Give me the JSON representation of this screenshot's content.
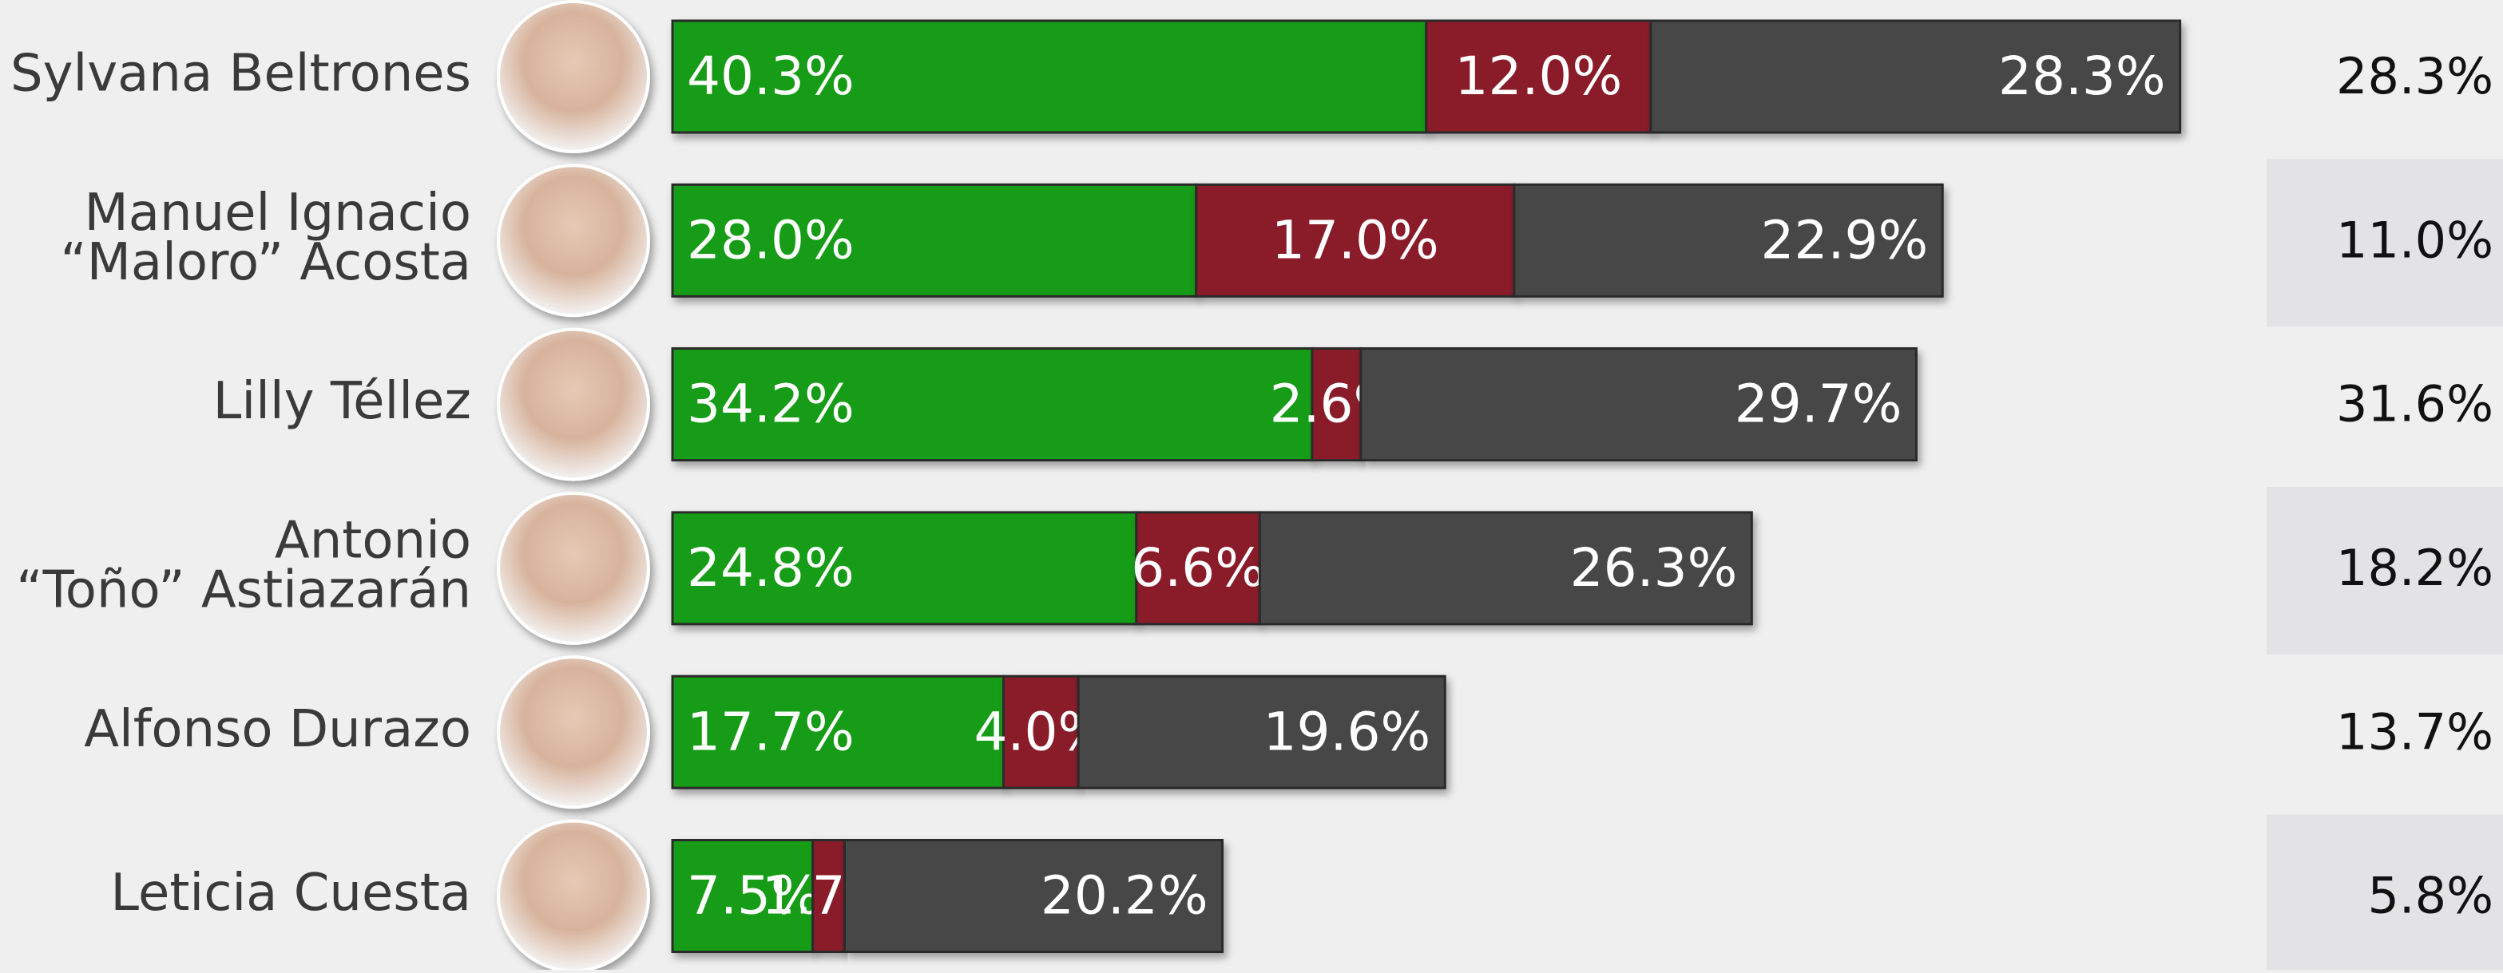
{
  "chart_data": {
    "type": "bar",
    "orientation": "horizontal",
    "stacked": true,
    "categories": [
      [
        "Sylvana Beltrones"
      ],
      [
        "Manuel Ignacio",
        "“Maloro” Acosta"
      ],
      [
        "Lilly Téllez"
      ],
      [
        "Antonio",
        "“Toño” Astiazarán"
      ],
      [
        "Alfonso Durazo"
      ],
      [
        "Leticia Cuesta"
      ]
    ],
    "series": [
      {
        "color": "#149c14",
        "values": [
          40.3,
          28.0,
          34.2,
          24.8,
          17.7,
          7.5
        ],
        "value_labels": [
          "40.3%",
          "28.0%",
          "34.2%",
          "24.8%",
          "17.7%",
          "7.5%"
        ]
      },
      {
        "color": "#8a1b2b",
        "values": [
          12.0,
          17.0,
          2.6,
          6.6,
          4.0,
          1.7
        ],
        "value_labels": [
          "12.0%",
          "17.0%",
          "2.6%",
          "6.6%",
          "4.0%",
          "1.7%"
        ]
      },
      {
        "color": "#464646",
        "values": [
          28.3,
          22.9,
          29.7,
          26.3,
          19.6,
          20.2
        ],
        "value_labels": [
          "28.3%",
          "22.9%",
          "29.7%",
          "26.3%",
          "19.6%",
          "20.2%"
        ]
      }
    ],
    "side_values": [
      28.3,
      11.0,
      31.6,
      18.2,
      13.7,
      5.8
    ],
    "side_value_labels": [
      "28.3%",
      "11.0%",
      "31.6%",
      "18.2%",
      "13.7%",
      "5.8%"
    ]
  }
}
